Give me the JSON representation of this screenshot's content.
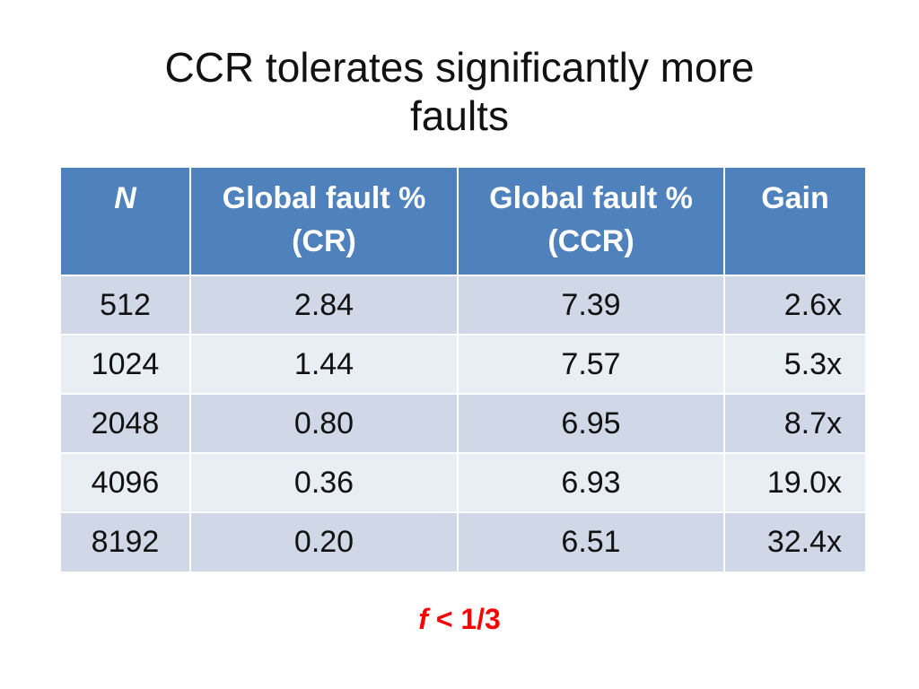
{
  "slide": {
    "title_line1": "CCR tolerates significantly more",
    "title_line2": "faults",
    "footnote_var": "f",
    "footnote_rest": " < 1/3"
  },
  "table": {
    "headers": [
      {
        "line1": "N",
        "line2": ""
      },
      {
        "line1": "Global fault %",
        "line2": "(CR)"
      },
      {
        "line1": "Global fault %",
        "line2": "(CCR)"
      },
      {
        "line1": "Gain",
        "line2": ""
      }
    ],
    "rows": [
      [
        "512",
        "2.84",
        "7.39",
        "2.6x"
      ],
      [
        "1024",
        "1.44",
        "7.57",
        "5.3x"
      ],
      [
        "2048",
        "0.80",
        "6.95",
        "8.7x"
      ],
      [
        "4096",
        "0.36",
        "6.93",
        "19.0x"
      ],
      [
        "8192",
        "0.20",
        "6.51",
        "32.4x"
      ]
    ]
  },
  "colors": {
    "header_bg": "#4f81bd",
    "row_odd_bg": "#d0d8e8",
    "row_even_bg": "#e9edf4",
    "footnote": "#ff0000"
  }
}
